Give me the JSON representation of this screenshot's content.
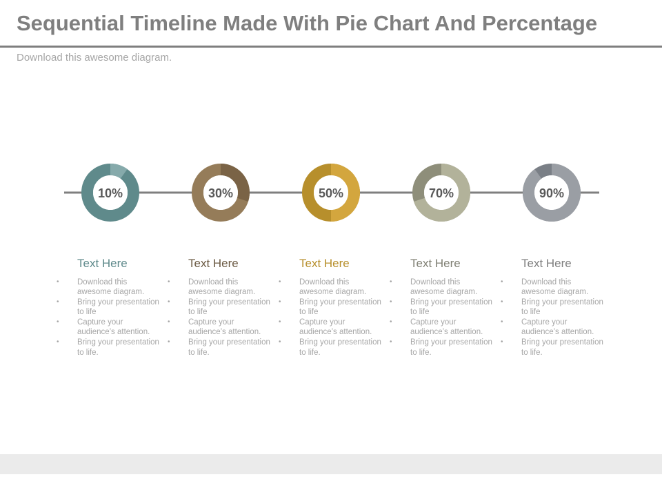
{
  "header": {
    "title": "Sequential Timeline Made With Pie Chart And Percentage",
    "subtitle": "Download this awesome diagram."
  },
  "chart_data": {
    "type": "pie",
    "track_color": "#7f7f7f",
    "steps": [
      {
        "label": "10%",
        "value": 10,
        "base_color": "#5f8a8b",
        "accent_color": "#86aaab",
        "heading": "Text Here",
        "heading_color": "#5f8a8b",
        "bullets": [
          "Download this awesome diagram.",
          "Bring your presentation to life",
          "Capture your audience’s attention.",
          "Bring your presentation to life."
        ]
      },
      {
        "label": "30%",
        "value": 30,
        "base_color": "#957c59",
        "accent_color": "#7a6346",
        "heading": "Text Here",
        "heading_color": "#6b5a43",
        "bullets": [
          "Download this awesome diagram.",
          "Bring your presentation to life",
          "Capture your audience’s attention.",
          "Bring your presentation to life."
        ]
      },
      {
        "label": "50%",
        "value": 50,
        "base_color": "#b78f2c",
        "accent_color": "#d3a63e",
        "heading": "Text Here",
        "heading_color": "#b78f2c",
        "bullets": [
          "Download this awesome diagram.",
          "Bring your presentation to life",
          "Capture your audience’s attention.",
          "Bring your presentation to life."
        ]
      },
      {
        "label": "70%",
        "value": 70,
        "base_color": "#8e8e7a",
        "accent_color": "#b2b29a",
        "heading": "Text Here",
        "heading_color": "#7f7f73",
        "bullets": [
          "Download this awesome diagram.",
          "Bring your presentation to life",
          "Capture your audience’s attention.",
          "Bring your presentation to life."
        ]
      },
      {
        "label": "90%",
        "value": 90,
        "base_color": "#7a7f86",
        "accent_color": "#9a9ea4",
        "heading": "Text Here",
        "heading_color": "#7f7f7f",
        "bullets": [
          "Download this awesome diagram.",
          "Bring your presentation to life",
          "Capture your audience’s attention.",
          "Bring your presentation to life."
        ]
      }
    ]
  }
}
